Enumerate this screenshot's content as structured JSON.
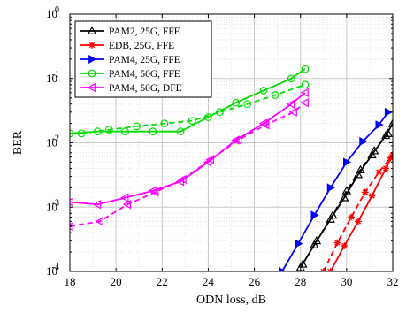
{
  "chart_data": {
    "type": "line",
    "xlabel": "ODN loss, dB",
    "ylabel": "BER",
    "xlim": [
      18,
      32
    ],
    "ylim": [
      0.0001,
      1
    ],
    "yscale": "log",
    "grid": true,
    "legend_position": "top-left",
    "x_tick_labels": [
      "18",
      "20",
      "22",
      "24",
      "26",
      "28",
      "30",
      "32"
    ],
    "y_tick_labels": [
      {
        "base": "10",
        "exp": "0"
      },
      {
        "base": "10",
        "exp": "-1"
      },
      {
        "base": "10",
        "exp": "-2"
      },
      {
        "base": "10",
        "exp": "-3"
      },
      {
        "base": "10",
        "exp": "-4"
      }
    ],
    "series": [
      {
        "name": "PAM2, 25G, FFE",
        "color": "#000000",
        "marker": "triangle-up",
        "solid": [
          [
            28.0,
            0.000115
          ],
          [
            28.6,
            0.00026
          ],
          [
            29.3,
            0.00065
          ],
          [
            29.9,
            0.0014
          ],
          [
            30.5,
            0.0032
          ],
          [
            31.1,
            0.0065
          ],
          [
            31.7,
            0.013
          ],
          [
            32.0,
            0.02
          ]
        ],
        "dashed": [
          [
            28.1,
            0.00013
          ],
          [
            28.7,
            0.0003
          ],
          [
            29.4,
            0.00075
          ],
          [
            30.0,
            0.0018
          ],
          [
            30.6,
            0.0038
          ],
          [
            31.2,
            0.0075
          ],
          [
            31.8,
            0.014
          ]
        ]
      },
      {
        "name": "EDB, 25G, FFE",
        "color": "#ff0000",
        "marker": "asterisk",
        "solid": [
          [
            29.3,
            0.0001
          ],
          [
            29.9,
            0.00025
          ],
          [
            30.5,
            0.0006
          ],
          [
            31.1,
            0.0015
          ],
          [
            31.7,
            0.004
          ],
          [
            32.0,
            0.0065
          ]
        ],
        "dashed": [
          [
            29.0,
            0.0001
          ],
          [
            29.6,
            0.00028
          ],
          [
            30.2,
            0.0007
          ],
          [
            30.8,
            0.0017
          ],
          [
            31.4,
            0.0035
          ],
          [
            31.9,
            0.0058
          ]
        ]
      },
      {
        "name": "PAM4, 25G, FFE",
        "color": "#0000ff",
        "marker": "triangle-right",
        "solid": [
          [
            27.2,
            0.0001
          ],
          [
            27.9,
            0.00027
          ],
          [
            28.6,
            0.00075
          ],
          [
            29.3,
            0.002
          ],
          [
            30.0,
            0.005
          ],
          [
            30.7,
            0.0105
          ],
          [
            31.4,
            0.019
          ],
          [
            31.8,
            0.03
          ]
        ]
      },
      {
        "name": "PAM4, 50G, FFE",
        "color": "#00dd00",
        "marker": "circle",
        "solid": [
          [
            18.0,
            0.014
          ],
          [
            19.2,
            0.015
          ],
          [
            20.4,
            0.015
          ],
          [
            21.6,
            0.015
          ],
          [
            22.8,
            0.015
          ],
          [
            24.0,
            0.025
          ],
          [
            25.2,
            0.042
          ],
          [
            26.4,
            0.065
          ],
          [
            27.6,
            0.1
          ],
          [
            28.2,
            0.14
          ]
        ],
        "dashed": [
          [
            18.5,
            0.014
          ],
          [
            19.7,
            0.016
          ],
          [
            20.9,
            0.018
          ],
          [
            22.1,
            0.02
          ],
          [
            23.3,
            0.022
          ],
          [
            24.5,
            0.03
          ],
          [
            25.7,
            0.04
          ],
          [
            26.9,
            0.055
          ],
          [
            28.2,
            0.08
          ]
        ]
      },
      {
        "name": "PAM4, 50G, DFE",
        "color": "#ff00ff",
        "marker": "triangle-left",
        "solid": [
          [
            18.0,
            0.0012
          ],
          [
            19.2,
            0.0011
          ],
          [
            20.4,
            0.0014
          ],
          [
            21.6,
            0.0018
          ],
          [
            22.8,
            0.0025
          ],
          [
            24.0,
            0.005
          ],
          [
            25.2,
            0.011
          ],
          [
            26.4,
            0.02
          ],
          [
            27.6,
            0.04
          ],
          [
            28.2,
            0.06
          ]
        ],
        "dashed": [
          [
            18.0,
            0.0005
          ],
          [
            19.3,
            0.0006
          ],
          [
            20.5,
            0.0011
          ],
          [
            21.7,
            0.0017
          ],
          [
            22.9,
            0.0027
          ],
          [
            24.1,
            0.0055
          ],
          [
            25.3,
            0.011
          ],
          [
            26.5,
            0.019
          ],
          [
            27.7,
            0.03
          ],
          [
            28.2,
            0.042
          ]
        ]
      }
    ]
  }
}
